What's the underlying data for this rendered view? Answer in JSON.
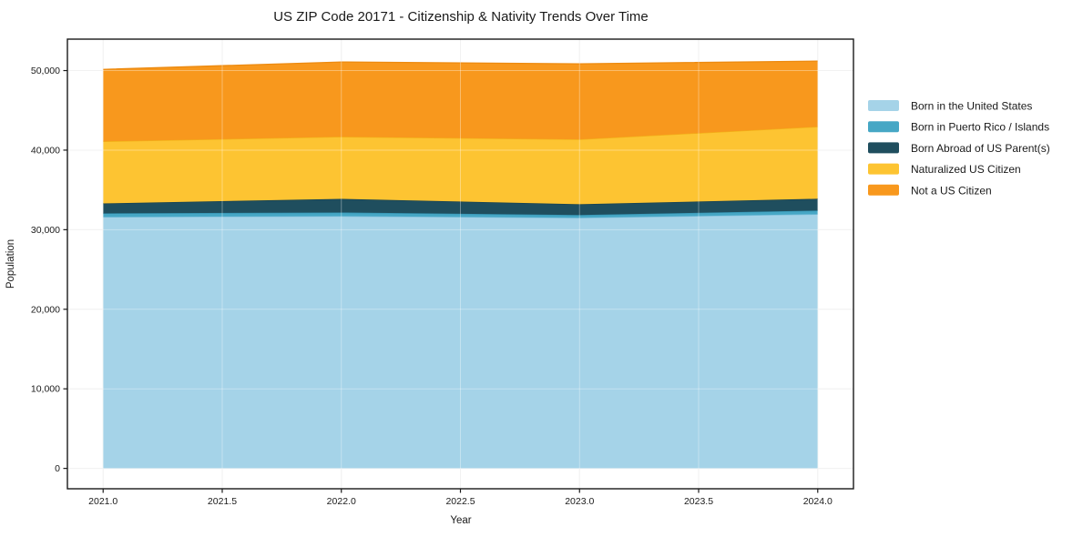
{
  "title": "US ZIP Code 20171 - Citizenship & Nativity Trends Over Time",
  "chart_data": {
    "type": "area",
    "stacked": true,
    "title": "US ZIP Code 20171 - Citizenship & Nativity Trends Over Time",
    "xlabel": "Year",
    "ylabel": "Population",
    "x": [
      2021,
      2022,
      2023,
      2024
    ],
    "series": [
      {
        "name": "Born in the United States",
        "color": "#a5d3e8",
        "edge": "#7fc0dc",
        "values": [
          31600,
          31700,
          31500,
          31950
        ]
      },
      {
        "name": "Born in Puerto Rico / Islands",
        "color": "#46a7c5",
        "edge": "#3493b2",
        "values": [
          450,
          460,
          350,
          450
        ]
      },
      {
        "name": "Born Abroad of US Parent(s)",
        "color": "#1f4e5e",
        "edge": "#16404e",
        "values": [
          1250,
          1720,
          1350,
          1490
        ]
      },
      {
        "name": "Naturalized US Citizen",
        "color": "#fdc432",
        "edge": "#f2b117",
        "values": [
          7800,
          7800,
          8150,
          9050
        ]
      },
      {
        "name": "Not a US Citizen",
        "color": "#f8981d",
        "edge": "#ec8a10",
        "values": [
          9050,
          9400,
          9500,
          8250
        ]
      }
    ],
    "totals": [
      50150,
      51080,
      50850,
      51190
    ],
    "xlim": [
      2020.85,
      2024.15
    ],
    "ylim": [
      -2560,
      53950
    ],
    "xticks": {
      "values": [
        2021,
        2021.5,
        2022,
        2022.5,
        2023,
        2023.5,
        2024
      ],
      "labels": [
        "2021.0",
        "2021.5",
        "2022.0",
        "2022.5",
        "2023.0",
        "2023.5",
        "2024.0"
      ]
    },
    "yticks": {
      "values": [
        0,
        10000,
        20000,
        30000,
        40000,
        50000
      ],
      "labels": [
        "0",
        "10,000",
        "20,000",
        "30,000",
        "40,000",
        "50,000"
      ]
    },
    "grid": true,
    "legend_position": "right of plot, no frame",
    "colors": {
      "spine": "#1a1a1a",
      "grid_under": "#ebebeb",
      "grid_over": "rgba(255,255,255,0.35)"
    }
  }
}
